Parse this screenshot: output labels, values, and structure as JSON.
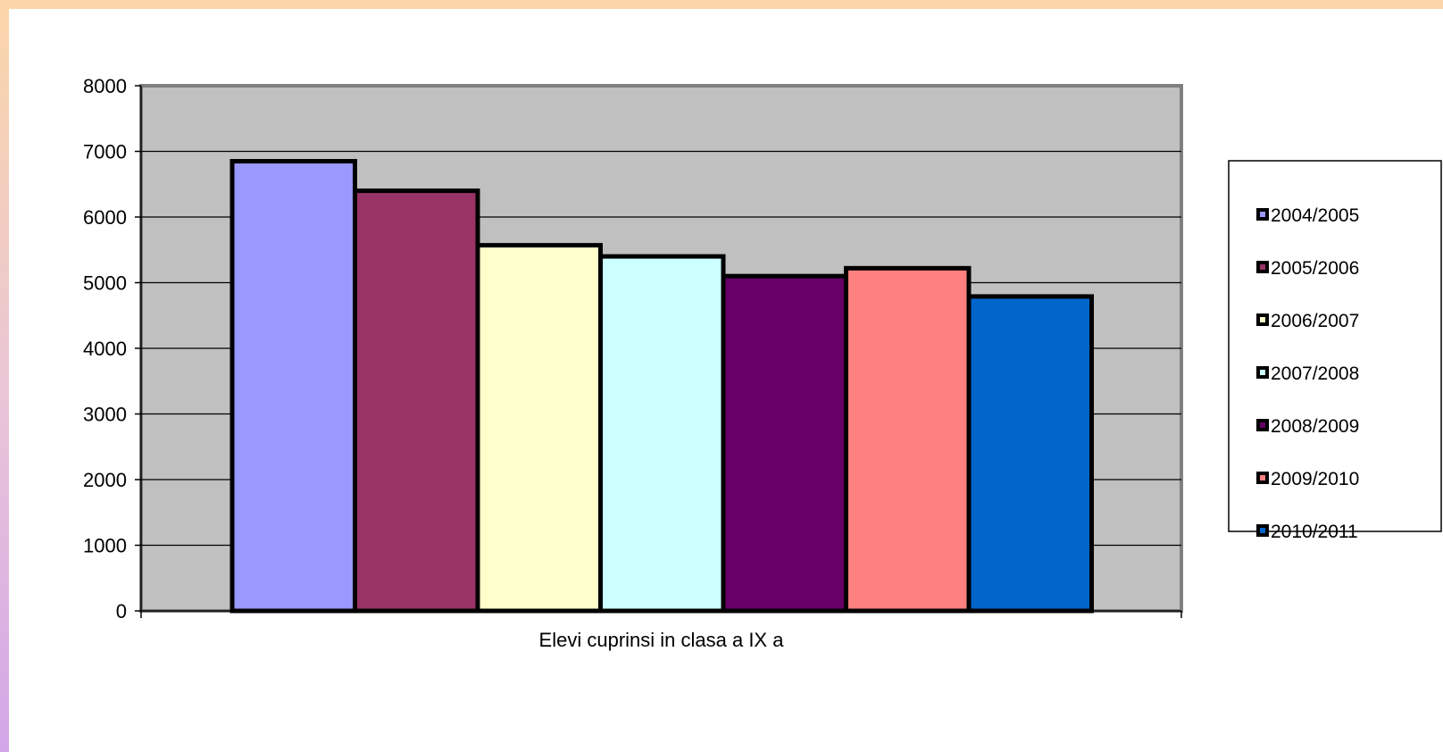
{
  "chart_data": {
    "type": "bar",
    "categories": [
      "Elevi cuprinsi in clasa a IX a"
    ],
    "xlabel": "Elevi cuprinsi in clasa a IX a",
    "ylabel": "",
    "ylim": [
      0,
      8000
    ],
    "yticks": [
      0,
      1000,
      2000,
      3000,
      4000,
      5000,
      6000,
      7000,
      8000
    ],
    "grid": true,
    "legend_position": "right",
    "series": [
      {
        "name": "2004/2005",
        "values": [
          6850
        ],
        "color": "#9999ff"
      },
      {
        "name": "2005/2006",
        "values": [
          6400
        ],
        "color": "#993366"
      },
      {
        "name": "2006/2007",
        "values": [
          5570
        ],
        "color": "#ffffcc"
      },
      {
        "name": "2007/2008",
        "values": [
          5400
        ],
        "color": "#ccffff"
      },
      {
        "name": "2008/2009",
        "values": [
          5100
        ],
        "color": "#660066"
      },
      {
        "name": "2009/2010",
        "values": [
          5220
        ],
        "color": "#ff8080"
      },
      {
        "name": "2010/2011",
        "values": [
          4790
        ],
        "color": "#0066cc"
      }
    ]
  }
}
